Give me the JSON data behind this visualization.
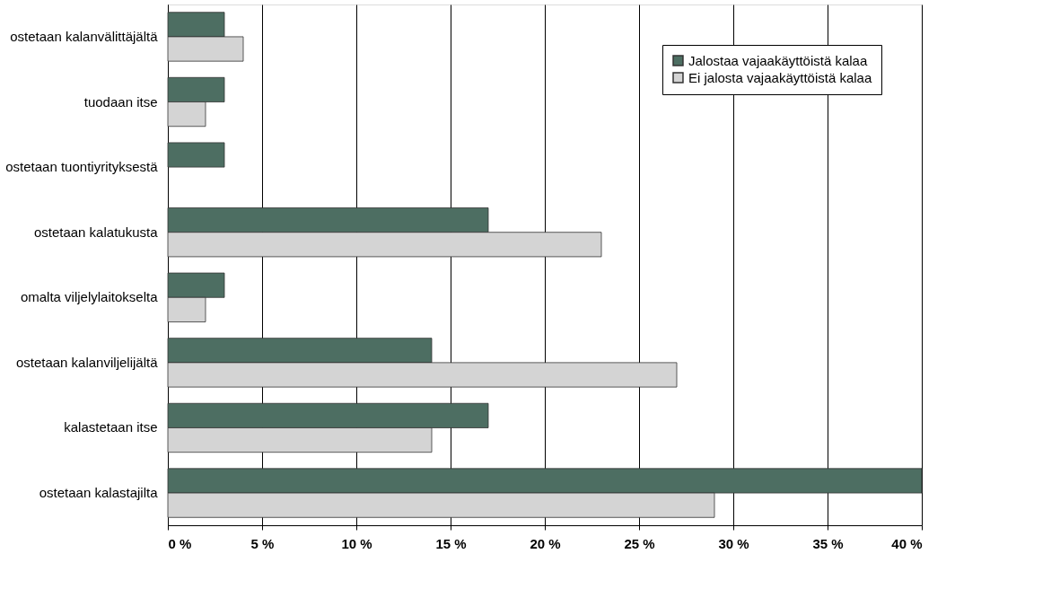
{
  "chart_data": {
    "type": "bar",
    "orientation": "horizontal",
    "categories": [
      "ostetaan kalanvälittäjältä",
      "tuodaan itse",
      "ostetaan tuontiyrityksestä",
      "ostetaan kalatukusta",
      "omalta  viljelylaitokselta",
      "ostetaan kalanviljelijältä",
      "kalastetaan itse",
      "ostetaan kalastajilta"
    ],
    "series": [
      {
        "name": "Jalostaa vajaakäyttöistä kalaa",
        "color": "#4d6e62",
        "values": [
          3,
          3,
          3,
          17,
          3,
          14,
          17,
          40
        ]
      },
      {
        "name": "Ei jalosta vajaakäyttöistä kalaa",
        "color": "#d4d4d4",
        "values": [
          4,
          2,
          null,
          23,
          2,
          27,
          14,
          29
        ]
      }
    ],
    "xlim": [
      0,
      40
    ],
    "xticks": [
      {
        "value": 0,
        "label": "0 %"
      },
      {
        "value": 5,
        "label": "5 %"
      },
      {
        "value": 10,
        "label": "10 %"
      },
      {
        "value": 15,
        "label": "15 %"
      },
      {
        "value": 20,
        "label": "20 %"
      },
      {
        "value": 25,
        "label": "25 %"
      },
      {
        "value": 30,
        "label": "30 %"
      },
      {
        "value": 35,
        "label": "35 %"
      },
      {
        "value": 40,
        "label": "40 %"
      }
    ],
    "grid": "x",
    "legend": "top right"
  }
}
